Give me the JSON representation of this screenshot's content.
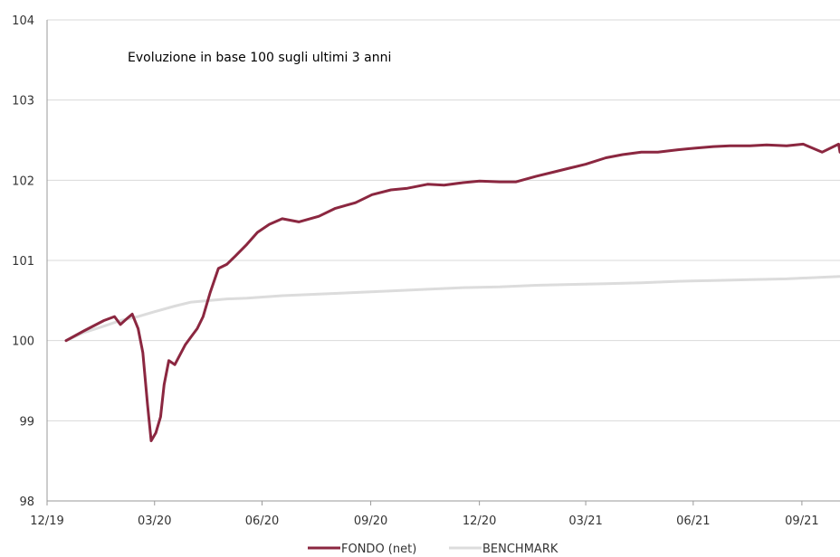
{
  "chart_data": {
    "type": "line",
    "title": "Evoluzione in base 100 sugli ultimi 3 anni",
    "xlabel": "",
    "ylabel": "",
    "ylim": [
      98,
      104
    ],
    "yticks": [
      "98",
      "99",
      "100",
      "101",
      "102",
      "103",
      "104"
    ],
    "x_tick_labels": [
      "12/19",
      "03/20",
      "06/20",
      "09/20",
      "12/20",
      "03/21",
      "06/21",
      "09/21"
    ],
    "grid": "horizontal",
    "legend_position": "bottom",
    "colors": {
      "fondo": "#8b2740",
      "benchmark": "#dcdcdc",
      "grid": "#d9d9d9",
      "axis": "#9a9a9a"
    },
    "series": [
      {
        "name": "FONDO (net)",
        "x": [
          "2019-12-31",
          "2020-01-15",
          "2020-02-01",
          "2020-02-10",
          "2020-02-15",
          "2020-02-21",
          "2020-02-25",
          "2020-03-01",
          "2020-03-05",
          "2020-03-09",
          "2020-03-12",
          "2020-03-16",
          "2020-03-20",
          "2020-03-23",
          "2020-03-27",
          "2020-04-01",
          "2020-04-10",
          "2020-04-15",
          "2020-04-20",
          "2020-04-25",
          "2020-05-01",
          "2020-05-08",
          "2020-05-15",
          "2020-05-22",
          "2020-06-01",
          "2020-06-10",
          "2020-06-20",
          "2020-07-01",
          "2020-07-15",
          "2020-08-01",
          "2020-08-15",
          "2020-09-01",
          "2020-09-15",
          "2020-10-01",
          "2020-10-15",
          "2020-11-01",
          "2020-11-15",
          "2020-12-01",
          "2020-12-15",
          "2021-01-01",
          "2021-01-15",
          "2021-02-01",
          "2021-02-15",
          "2021-03-01",
          "2021-03-15",
          "2021-04-01",
          "2021-04-15",
          "2021-05-01",
          "2021-05-15",
          "2021-06-01",
          "2021-06-15",
          "2021-07-01",
          "2021-07-15",
          "2021-08-01",
          "2021-08-15",
          "2021-09-01",
          "2021-09-15",
          "2021-10-01",
          "2021-10-15",
          "2021-10-25"
        ],
        "y": [
          100.0,
          100.12,
          100.25,
          100.3,
          100.2,
          100.28,
          100.33,
          100.15,
          99.85,
          99.2,
          98.75,
          98.85,
          99.05,
          99.45,
          99.75,
          99.7,
          99.95,
          100.05,
          100.15,
          100.3,
          100.6,
          100.9,
          100.95,
          101.05,
          101.2,
          101.35,
          101.45,
          101.52,
          101.48,
          101.55,
          101.65,
          101.72,
          101.82,
          101.88,
          101.9,
          101.95,
          101.94,
          101.97,
          101.99,
          101.98,
          101.98,
          102.05,
          102.1,
          102.15,
          102.2,
          102.28,
          102.32,
          102.35,
          102.35,
          102.38,
          102.4,
          102.42,
          102.43,
          102.43,
          102.44,
          102.43,
          102.45,
          102.35,
          102.45,
          102.35
        ]
      },
      {
        "name": "BENCHMARK",
        "x": [
          "2019-12-31",
          "2020-01-15",
          "2020-02-01",
          "2020-02-15",
          "2020-03-01",
          "2020-03-15",
          "2020-04-01",
          "2020-04-15",
          "2020-05-01",
          "2020-05-15",
          "2020-06-01",
          "2020-07-01",
          "2020-08-01",
          "2020-09-01",
          "2020-10-01",
          "2020-11-01",
          "2020-12-01",
          "2021-01-01",
          "2021-02-01",
          "2021-03-01",
          "2021-04-01",
          "2021-05-01",
          "2021-06-01",
          "2021-07-01",
          "2021-08-01",
          "2021-09-01",
          "2021-10-01",
          "2021-10-25"
        ],
        "y": [
          100.0,
          100.1,
          100.18,
          100.25,
          100.3,
          100.36,
          100.43,
          100.48,
          100.5,
          100.52,
          100.53,
          100.56,
          100.58,
          100.6,
          100.62,
          100.64,
          100.66,
          100.67,
          100.69,
          100.7,
          100.71,
          100.72,
          100.74,
          100.75,
          100.76,
          100.77,
          100.79,
          100.8
        ]
      }
    ]
  }
}
